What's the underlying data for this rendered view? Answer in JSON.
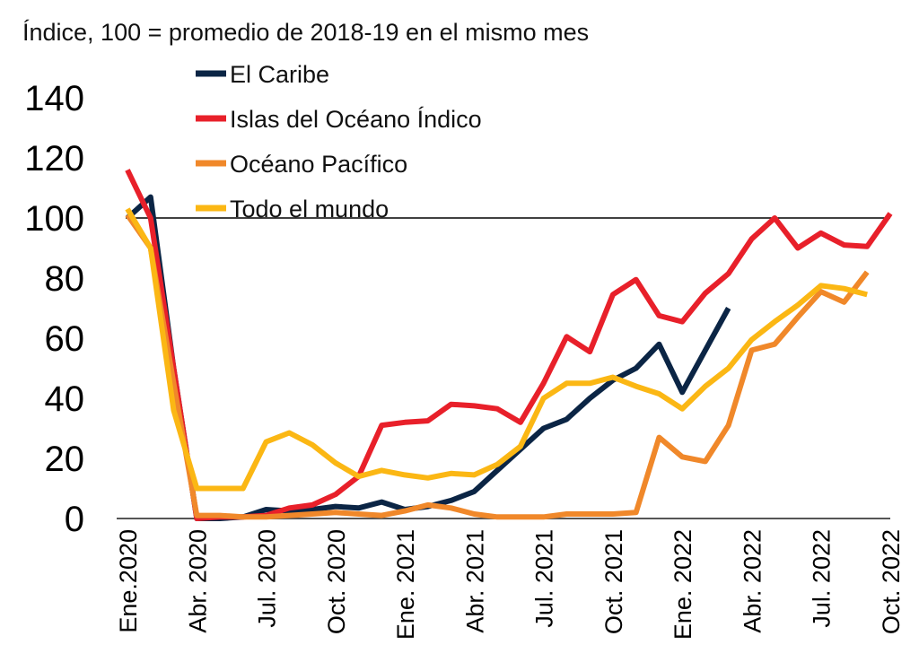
{
  "chart_data": {
    "type": "line",
    "title": "Índice, 100 = promedio de 2018-19 en el mismo mes",
    "xlabel": "",
    "ylabel": "",
    "ylim": [
      0,
      140
    ],
    "yticks": [
      0,
      20,
      40,
      60,
      80,
      100,
      120,
      140
    ],
    "reference_line": 100,
    "grid": false,
    "legend_position": "top-center",
    "x_tick_labels": [
      "Ene.2020",
      "Abr. 2020",
      "Jul. 2020",
      "Oct. 2020",
      "Ene. 2021",
      "Abr. 2021",
      "Jul. 2021",
      "Oct. 2021",
      "Ene. 2022",
      "Abr. 2022",
      "Jul. 2022",
      "Oct. 2022"
    ],
    "num_periods": 34,
    "series": [
      {
        "name": "El Caribe",
        "color": "#0b2545",
        "values": [
          100,
          107,
          50,
          0,
          0,
          0.5,
          3,
          2.5,
          3,
          4,
          3.5,
          5.5,
          3,
          4,
          6,
          9,
          16,
          23,
          30,
          33,
          40,
          46,
          50,
          58,
          42,
          56,
          70
        ]
      },
      {
        "name": "Islas del Océano Índico",
        "color": "#e8202a",
        "values": [
          116,
          100,
          50,
          0,
          0.5,
          0.5,
          1,
          3.5,
          4.5,
          8,
          14,
          31,
          32,
          32.5,
          38,
          37.5,
          36.5,
          32,
          45,
          60.5,
          55.5,
          74.5,
          79.5,
          67.5,
          65.5,
          75,
          81.5,
          93,
          100,
          90,
          95,
          91,
          90.5,
          101.5
        ]
      },
      {
        "name": "Océano Pacífico",
        "color": "#f0882a",
        "values": [
          101,
          90,
          45,
          1,
          1,
          0.5,
          0.5,
          1,
          1.5,
          2,
          1.5,
          1,
          2.5,
          4.5,
          3.5,
          1.5,
          0.5,
          0.5,
          0.5,
          1.5,
          1.5,
          1.5,
          2,
          27,
          20.5,
          19,
          31,
          56,
          58,
          67,
          75.5,
          72,
          82
        ]
      },
      {
        "name": "Todo el mundo",
        "color": "#fbb714",
        "values": [
          103,
          90,
          36,
          10,
          10,
          10,
          25.5,
          28.5,
          24.5,
          18.5,
          14,
          16,
          14.5,
          13.5,
          15,
          14.5,
          18,
          24,
          40,
          45,
          45,
          47,
          44,
          41.5,
          36.5,
          44,
          50,
          59.5,
          65.5,
          71,
          77.5,
          76.5,
          74.5
        ]
      }
    ]
  }
}
